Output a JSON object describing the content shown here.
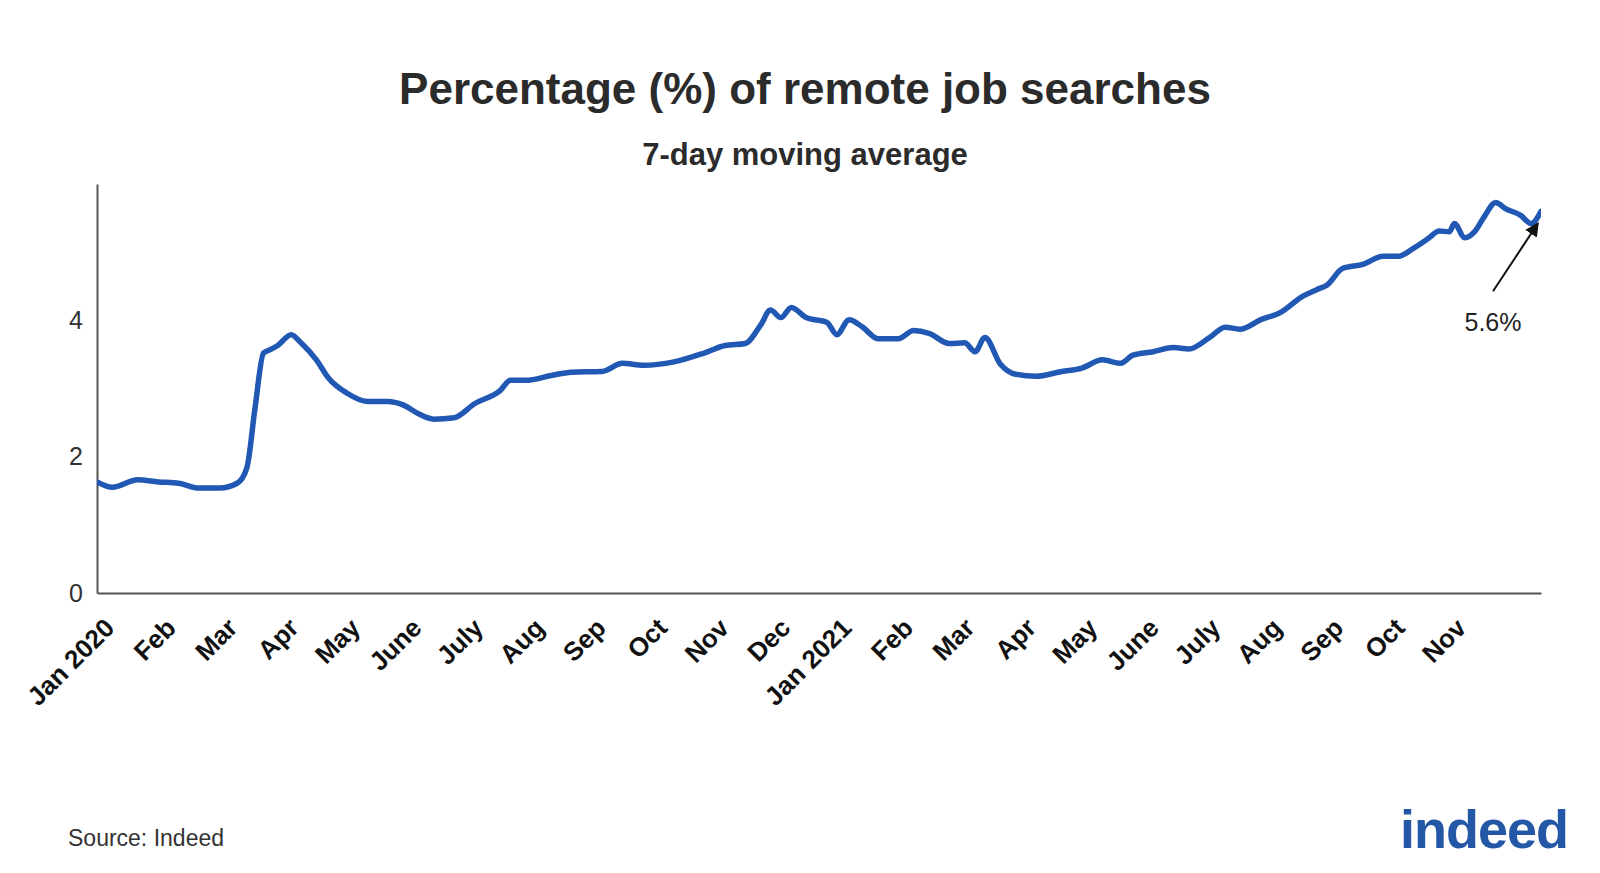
{
  "chart_data": {
    "type": "line",
    "title": "Percentage (%) of remote job searches",
    "subtitle": "7-day moving average",
    "source": "Source: Indeed",
    "logo": "indeed",
    "color": "#2158b4",
    "x": [
      0,
      0.25,
      0.66,
      1,
      1.33,
      1.66,
      2,
      2.28,
      2.44,
      2.57,
      2.71,
      2.82,
      2.94,
      3.16,
      3.32,
      3.57,
      3.77,
      4.07,
      4.4,
      4.73,
      4.98,
      5.23,
      5.48,
      5.81,
      6.15,
      6.56,
      6.73,
      6.98,
      7.39,
      7.72,
      8.22,
      8.55,
      8.89,
      9.39,
      9.88,
      10.22,
      10.55,
      10.8,
      10.96,
      11.13,
      11.3,
      11.54,
      11.88,
      12.04,
      12.24,
      12.46,
      12.71,
      13.04,
      13.29,
      13.54,
      13.87,
      14.12,
      14.29,
      14.45,
      14.7,
      14.95,
      15.28,
      15.7,
      16.03,
      16.36,
      16.66,
      16.86,
      17.19,
      17.52,
      17.77,
      18.11,
      18.36,
      18.6,
      18.94,
      19.27,
      19.6,
      19.85,
      20.02,
      20.27,
      20.6,
      20.93,
      21.18,
      21.43,
      21.68,
      21.84,
      22.01,
      22.09,
      22.26,
      22.42,
      22.59,
      22.76,
      22.92,
      23.17,
      23.34,
      23.5
    ],
    "values": [
      1.63,
      1.55,
      1.66,
      1.63,
      1.61,
      1.54,
      1.54,
      1.61,
      1.84,
      2.7,
      3.52,
      3.57,
      3.63,
      3.79,
      3.67,
      3.42,
      3.15,
      2.93,
      2.81,
      2.81,
      2.76,
      2.63,
      2.55,
      2.57,
      2.78,
      2.97,
      3.12,
      3.12,
      3.19,
      3.24,
      3.25,
      3.37,
      3.34,
      3.39,
      3.52,
      3.63,
      3.66,
      3.93,
      4.15,
      4.04,
      4.19,
      4.04,
      3.97,
      3.79,
      4.01,
      3.9,
      3.73,
      3.73,
      3.85,
      3.81,
      3.66,
      3.67,
      3.54,
      3.75,
      3.36,
      3.21,
      3.18,
      3.25,
      3.3,
      3.42,
      3.37,
      3.49,
      3.54,
      3.6,
      3.58,
      3.75,
      3.9,
      3.87,
      4.01,
      4.12,
      4.34,
      4.45,
      4.52,
      4.76,
      4.82,
      4.94,
      4.94,
      5.06,
      5.21,
      5.31,
      5.3,
      5.42,
      5.21,
      5.3,
      5.54,
      5.73,
      5.64,
      5.54,
      5.42,
      5.6
    ],
    "xlim": [
      0,
      23.5
    ],
    "xticks": [
      {
        "value": 0,
        "label": "Jan 2020"
      },
      {
        "value": 1,
        "label": "Feb"
      },
      {
        "value": 2,
        "label": "Mar"
      },
      {
        "value": 3,
        "label": "Apr"
      },
      {
        "value": 4,
        "label": "May"
      },
      {
        "value": 5,
        "label": "June"
      },
      {
        "value": 6,
        "label": "July"
      },
      {
        "value": 7,
        "label": "Aug"
      },
      {
        "value": 8,
        "label": "Sep"
      },
      {
        "value": 9,
        "label": "Oct"
      },
      {
        "value": 10,
        "label": "Nov"
      },
      {
        "value": 11,
        "label": "Dec"
      },
      {
        "value": 12,
        "label": "Jan 2021"
      },
      {
        "value": 13,
        "label": "Feb"
      },
      {
        "value": 14,
        "label": "Mar"
      },
      {
        "value": 15,
        "label": "Apr"
      },
      {
        "value": 16,
        "label": "May"
      },
      {
        "value": 17,
        "label": "June"
      },
      {
        "value": 18,
        "label": "July"
      },
      {
        "value": 19,
        "label": "Aug"
      },
      {
        "value": 20,
        "label": "Sep"
      },
      {
        "value": 21,
        "label": "Oct"
      },
      {
        "value": 22,
        "label": "Nov"
      }
    ],
    "ylim": [
      0,
      6
    ],
    "yticks": [
      0,
      2,
      4
    ],
    "grid": false,
    "annotations": [
      {
        "text": "5.6%",
        "x": 23.5,
        "y": 5.6
      }
    ]
  }
}
